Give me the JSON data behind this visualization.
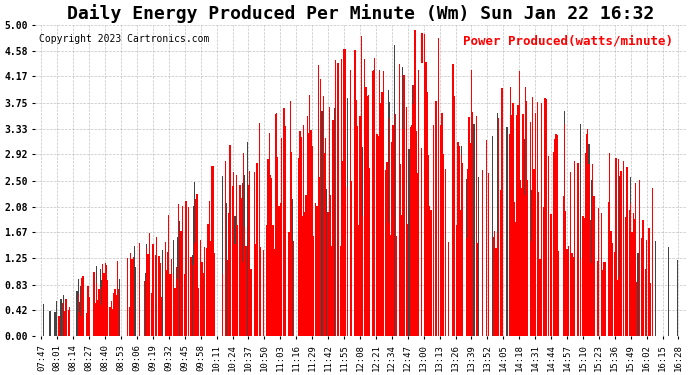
{
  "title": "Daily Energy Produced Per Minute (Wm) Sun Jan 22 16:32",
  "copyright": "Copyright 2023 Cartronics.com",
  "legend_label": "Power Produced(watts/minute)",
  "legend_color": "red",
  "background_color": "#ffffff",
  "grid_color": "#aaaaaa",
  "bar_color": "red",
  "ylim": [
    0.0,
    5.0
  ],
  "yticks": [
    0.0,
    0.42,
    0.83,
    1.25,
    1.67,
    2.08,
    2.5,
    2.92,
    3.33,
    3.75,
    4.17,
    4.58,
    5.0
  ],
  "title_fontsize": 13,
  "copyright_fontsize": 7,
  "legend_fontsize": 9,
  "tick_fontsize": 6.5,
  "x_tick_labels": [
    "07:47",
    "08:01",
    "08:14",
    "08:27",
    "08:40",
    "08:53",
    "09:06",
    "09:19",
    "09:32",
    "09:45",
    "09:58",
    "10:11",
    "10:24",
    "10:37",
    "10:50",
    "11:03",
    "11:16",
    "11:29",
    "11:42",
    "11:55",
    "12:08",
    "12:21",
    "12:34",
    "12:47",
    "13:00",
    "13:13",
    "13:26",
    "13:39",
    "13:52",
    "14:05",
    "14:18",
    "14:31",
    "14:44",
    "14:57",
    "15:10",
    "15:23",
    "15:36",
    "15:49",
    "16:02",
    "16:15",
    "16:28"
  ]
}
